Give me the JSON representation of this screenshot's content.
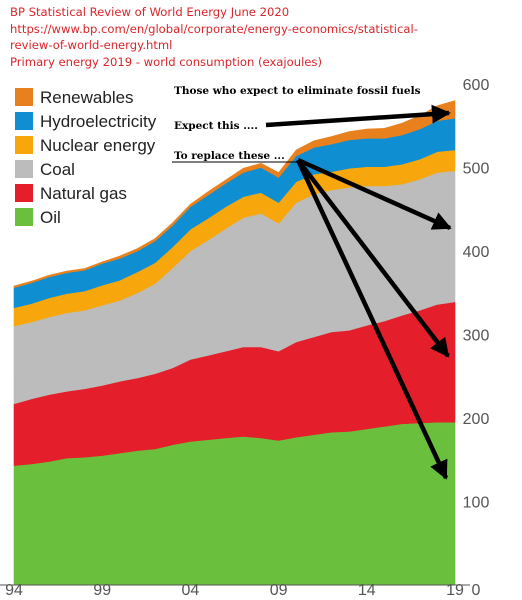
{
  "header": {
    "line1": "BP Statistical Review of World Energy June 2020",
    "line2": "https://www.bp.com/en/global/corporate/energy-economics/statistical-",
    "line3": "review-of-world-energy.html",
    "line4": "Primary energy 2019 - world consumption (exajoules)"
  },
  "chart_data": {
    "type": "area",
    "stacked": true,
    "x": [
      1994,
      1995,
      1996,
      1997,
      1998,
      1999,
      2000,
      2001,
      2002,
      2003,
      2004,
      2005,
      2006,
      2007,
      2008,
      2009,
      2010,
      2011,
      2012,
      2013,
      2014,
      2015,
      2016,
      2017,
      2018,
      2019
    ],
    "x_tick_labels": [
      "94",
      "99",
      "04",
      "09",
      "14",
      "19"
    ],
    "x_tick_values": [
      1994,
      1999,
      2004,
      2009,
      2014,
      2019
    ],
    "y_tick_values": [
      0,
      100,
      200,
      300,
      400,
      500,
      600
    ],
    "y_tick_labels": [
      "0",
      "100",
      "200",
      "300",
      "400",
      "500",
      "600"
    ],
    "ylim": [
      0,
      600
    ],
    "legend_placement": "top-left",
    "series": [
      {
        "name": "Oil",
        "color": "#6abf3c",
        "values": [
          143,
          145,
          148,
          152,
          153,
          155,
          158,
          161,
          163,
          168,
          172,
          174,
          176,
          178,
          176,
          173,
          177,
          180,
          183,
          184,
          187,
          190,
          193,
          194,
          195,
          195
        ]
      },
      {
        "name": "Natural gas",
        "color": "#e41e2b",
        "values": [
          74,
          78,
          80,
          80,
          82,
          84,
          86,
          87,
          90,
          92,
          98,
          101,
          104,
          107,
          109,
          107,
          114,
          117,
          120,
          121,
          124,
          126,
          130,
          135,
          141,
          144
        ]
      },
      {
        "name": "Coal",
        "color": "#bcbcbc",
        "values": [
          93,
          92,
          93,
          94,
          94,
          96,
          97,
          102,
          108,
          120,
          130,
          138,
          147,
          155,
          160,
          153,
          167,
          171,
          170,
          171,
          167,
          162,
          157,
          157,
          158,
          157
        ]
      },
      {
        "name": "Nuclear energy",
        "color": "#f7a70b",
        "values": [
          22,
          22,
          23,
          23,
          23,
          24,
          24,
          25,
          25,
          25,
          26,
          26,
          26,
          25,
          25,
          25,
          25,
          24,
          22,
          23,
          23,
          23,
          24,
          24,
          25,
          25
        ]
      },
      {
        "name": "Hydroelectricity",
        "color": "#0f8fd2",
        "values": [
          24,
          25,
          25,
          25,
          25,
          26,
          26,
          25,
          26,
          26,
          27,
          28,
          28,
          29,
          30,
          30,
          31,
          32,
          33,
          34,
          34,
          34,
          35,
          36,
          37,
          38
        ]
      },
      {
        "name": "Renewables",
        "color": "#e8801e",
        "values": [
          2,
          2,
          2,
          2,
          2,
          2,
          3,
          3,
          3,
          3,
          3,
          4,
          4,
          5,
          5,
          6,
          7,
          8,
          9,
          10,
          11,
          12,
          14,
          16,
          18,
          21
        ]
      }
    ],
    "annotations": [
      "Those who expect to eliminate fossil fuels",
      "Expect this ....",
      "To replace these ..."
    ]
  }
}
